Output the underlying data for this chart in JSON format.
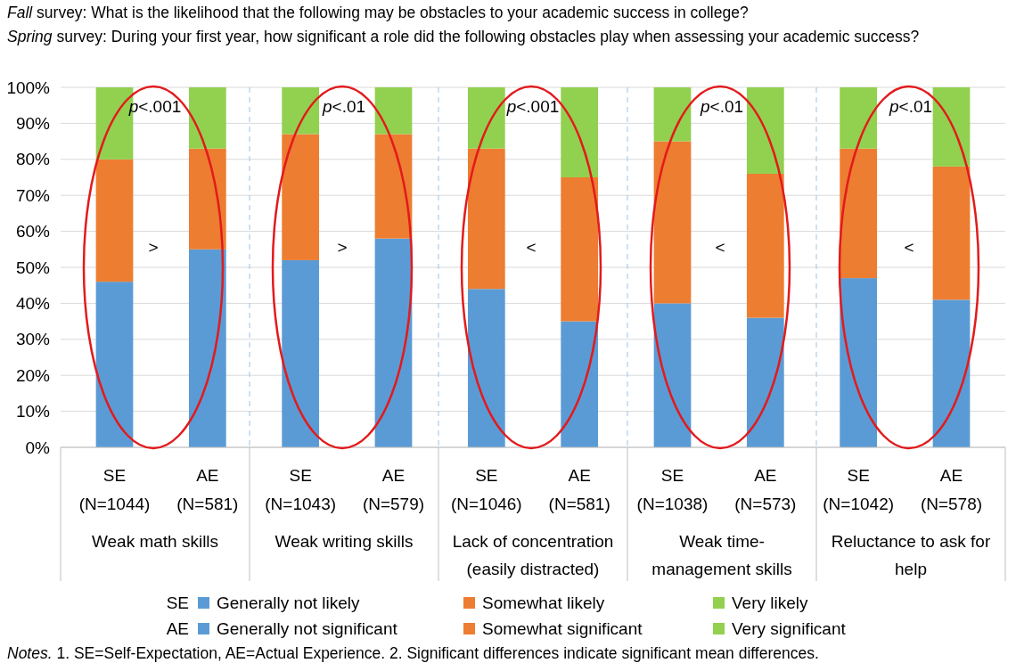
{
  "chart_data": {
    "type": "bar",
    "stacked": true,
    "title": "Fall survey: What is the likelihood that the following may be obstacles to your academic success in college?",
    "subtitle": "Spring survey: During your first year, how significant a role did the following obstacles play when assessing your academic success?",
    "categories": [
      "SE (N=1044)",
      "AE (N=581)",
      "SE (N=1043)",
      "AE (N=579)",
      "SE (N=1046)",
      "AE (N=581)",
      "SE (N=1038)",
      "AE (N=573)",
      "SE (N=1042)",
      "AE (N=578)"
    ],
    "series": [
      {
        "name": "Generally not likely",
        "color": "#5b9bd5",
        "values": [
          46,
          null,
          52,
          null,
          44,
          null,
          40,
          null,
          47,
          null
        ]
      },
      {
        "name": "Somewhat likely",
        "color": "#ed7d31",
        "values": [
          34,
          null,
          35,
          null,
          39,
          null,
          45,
          null,
          36,
          null
        ]
      },
      {
        "name": "Very likely",
        "color": "#92d050",
        "values": [
          20,
          null,
          13,
          null,
          17,
          null,
          15,
          null,
          17,
          null
        ]
      },
      {
        "name": "Generally not significant",
        "color": "#5b9bd5",
        "values": [
          null,
          55,
          null,
          58,
          null,
          35,
          null,
          36,
          null,
          41
        ]
      },
      {
        "name": "Somewhat significant",
        "color": "#ed7d31",
        "values": [
          null,
          28,
          null,
          29,
          null,
          40,
          null,
          40,
          null,
          37
        ]
      },
      {
        "name": "Very significant",
        "color": "#92d050",
        "values": [
          null,
          17,
          null,
          13,
          null,
          25,
          null,
          24,
          null,
          22
        ]
      }
    ],
    "ylim": [
      0,
      100
    ],
    "yticks": [
      {
        "value": 0,
        "label": "0%"
      },
      {
        "value": 10,
        "label": "10%"
      },
      {
        "value": 20,
        "label": "20%"
      },
      {
        "value": 30,
        "label": "30%"
      },
      {
        "value": 40,
        "label": "40%"
      },
      {
        "value": 50,
        "label": "50%"
      },
      {
        "value": 60,
        "label": "60%"
      },
      {
        "value": 70,
        "label": "70%"
      },
      {
        "value": 80,
        "label": "80%"
      },
      {
        "value": 90,
        "label": "90%"
      },
      {
        "value": 100,
        "label": "100%"
      }
    ],
    "grid": "y",
    "legend": "bottom",
    "annotations": [
      "Weak math skills",
      "Weak writing skills",
      "Lack of concentration (easily distracted)",
      "Weak time-management skills",
      "Reluctance to ask for help",
      "p<.001",
      "p<.01",
      "p<.001",
      "p<.01",
      "p<.01",
      ">",
      ">",
      "<",
      "<",
      "<",
      "SE",
      "AE",
      "Notes. 1. SE=Self-Expectation, AE=Actual Experience. 2. Significant differences indicate significant mean differences."
    ]
  }
}
